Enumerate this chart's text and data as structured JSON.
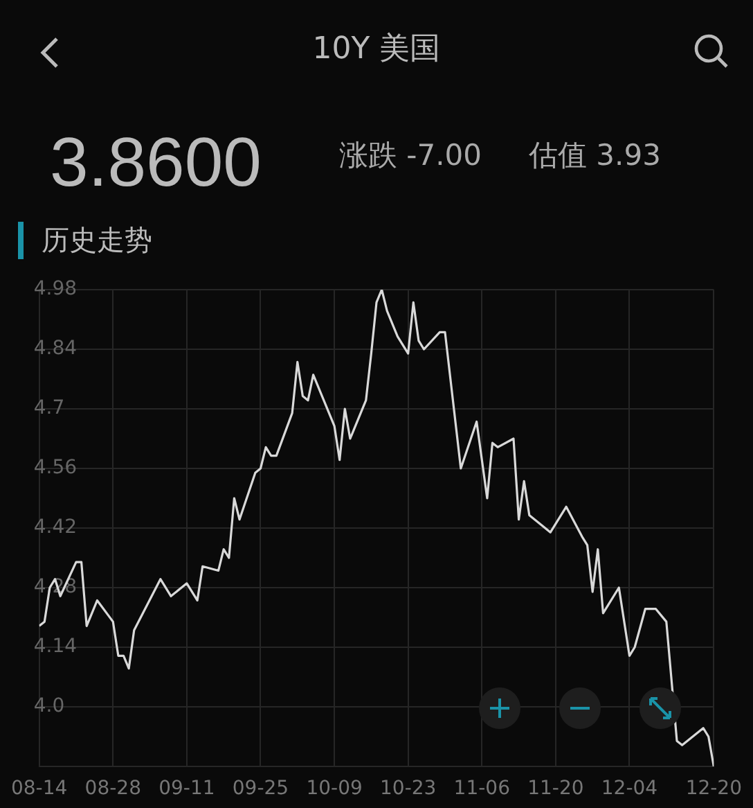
{
  "chart_data": {
    "type": "line",
    "title": "10Y 美国",
    "annotations": [
      "3.8600",
      "涨跌 -7.00",
      "估值 3.93",
      "历史走势"
    ],
    "x": [
      "--08-14",
      "--08-15",
      "--08-16",
      "--08-17",
      "--08-18",
      "--08-21",
      "--08-22",
      "--08-23",
      "--08-25",
      "--08-28",
      "--08-29",
      "--08-30",
      "--08-31",
      "--09-01",
      "--09-06",
      "--09-08",
      "--09-11",
      "--09-13",
      "--09-14",
      "--09-17",
      "--09-18",
      "--09-19",
      "--09-20",
      "--09-21",
      "--09-24",
      "--09-25",
      "--09-26",
      "--09-27",
      "--09-28",
      "--10-01",
      "--10-02",
      "--10-03",
      "--10-04",
      "--10-05",
      "--10-09",
      "--10-10",
      "--10-11",
      "--10-12",
      "--10-15",
      "--10-16",
      "--10-17",
      "--10-18",
      "--10-19",
      "--10-21",
      "--10-23",
      "--10-24",
      "--10-25",
      "--10-26",
      "--10-29",
      "--10-30",
      "--11-02",
      "--11-05",
      "--11-07",
      "--11-08",
      "--11-09",
      "--11-12",
      "--11-13",
      "--11-14",
      "--11-15",
      "--11-19",
      "--11-22",
      "--11-25",
      "--11-26",
      "--11-27",
      "--11-28",
      "--11-29",
      "--12-02",
      "--12-04",
      "--12-05",
      "--12-07",
      "--12-09",
      "--12-11",
      "--12-13",
      "--12-14",
      "--12-18",
      "--12-19",
      "--12-20"
    ],
    "series": [
      {
        "color": "#d9d9d9",
        "values": [
          4.19,
          4.2,
          4.28,
          4.3,
          4.26,
          4.34,
          4.34,
          4.19,
          4.25,
          4.2,
          4.12,
          4.12,
          4.09,
          4.18,
          4.3,
          4.26,
          4.29,
          4.25,
          4.33,
          4.32,
          4.37,
          4.35,
          4.49,
          4.44,
          4.55,
          4.56,
          4.61,
          4.59,
          4.59,
          4.69,
          4.81,
          4.73,
          4.72,
          4.78,
          4.66,
          4.58,
          4.7,
          4.63,
          4.72,
          4.83,
          4.95,
          4.98,
          4.93,
          4.87,
          4.83,
          4.95,
          4.86,
          4.84,
          4.88,
          4.88,
          4.56,
          4.67,
          4.49,
          4.62,
          4.61,
          4.63,
          4.44,
          4.53,
          4.45,
          4.41,
          4.47,
          4.4,
          4.38,
          4.27,
          4.37,
          4.22,
          4.28,
          4.12,
          4.14,
          4.23,
          4.23,
          4.2,
          3.92,
          3.91,
          3.95,
          3.93,
          3.86
        ]
      }
    ],
    "xlim": [
      "--08-14",
      "--12-20"
    ],
    "xticks": [
      {
        "value": "--08-14",
        "label": "08-14"
      },
      {
        "value": "--08-28",
        "label": "08-28"
      },
      {
        "value": "--09-11",
        "label": "09-11"
      },
      {
        "value": "--09-25",
        "label": "09-25"
      },
      {
        "value": "--10-09",
        "label": "10-09"
      },
      {
        "value": "--10-23",
        "label": "10-23"
      },
      {
        "value": "--11-06",
        "label": "11-06"
      },
      {
        "value": "--11-20",
        "label": "11-20"
      },
      {
        "value": "--12-04",
        "label": "12-04"
      },
      {
        "value": "--12-20",
        "label": "12-20"
      }
    ],
    "ylim": [
      3.86,
      4.98
    ],
    "yticks": [
      {
        "value": 4.0,
        "label": "4.0"
      },
      4.14,
      4.28,
      4.42,
      4.56,
      4.7,
      4.84,
      4.98
    ],
    "grid": true,
    "legend": false,
    "marker": "none",
    "line_style": "solid"
  }
}
